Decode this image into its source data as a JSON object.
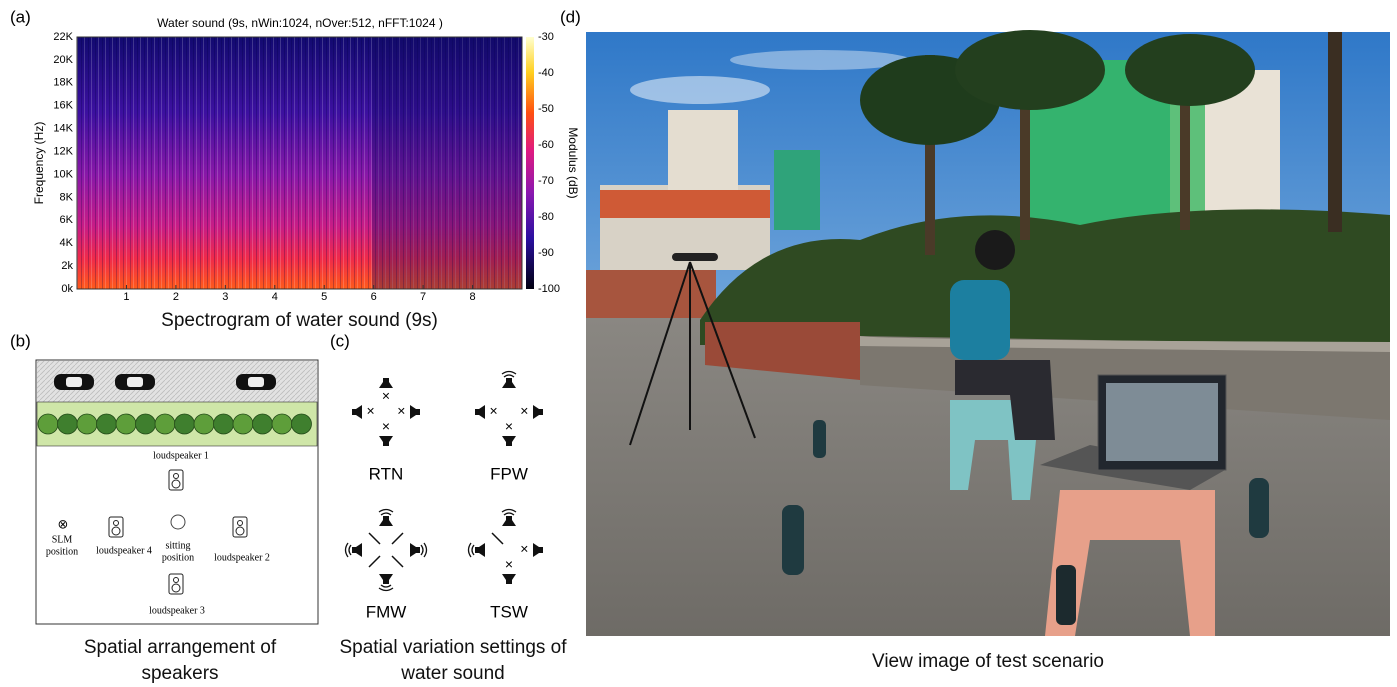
{
  "panels": {
    "a": {
      "label": "(a)",
      "title": "Water sound (9s, nWin:1024, nOver:512, nFFT:1024 )",
      "y_axis_label": "Frequency (Hz)",
      "y_ticks": [
        "0k",
        "2k",
        "4K",
        "6K",
        "8K",
        "10K",
        "12K",
        "14K",
        "16K",
        "18K",
        "20K",
        "22K"
      ],
      "x_ticks": [
        "1",
        "2",
        "3",
        "4",
        "5",
        "6",
        "7",
        "8"
      ],
      "colorbar_label": "Modulus (dB)",
      "colorbar_ticks": [
        "-30",
        "-40",
        "-50",
        "-60",
        "-70",
        "-80",
        "-90",
        "-100"
      ],
      "caption": "Spectrogram of water sound (9s)"
    },
    "b": {
      "label": "(b)",
      "loudspeakers": [
        "loudspeaker 1",
        "loudspeaker 4",
        "loudspeaker 2",
        "loudspeaker 3"
      ],
      "sitting_position": [
        "sitting",
        "position"
      ],
      "slm_position": [
        "SLM",
        "position"
      ],
      "caption": "Spatial arrangement of speakers"
    },
    "c": {
      "label": "(c)",
      "settings": [
        "RTN",
        "FPW",
        "FMW",
        "TSW"
      ],
      "caption": "Spatial variation settings of water sound"
    },
    "d": {
      "label": "(d)",
      "caption": "View image of test scenario"
    }
  }
}
